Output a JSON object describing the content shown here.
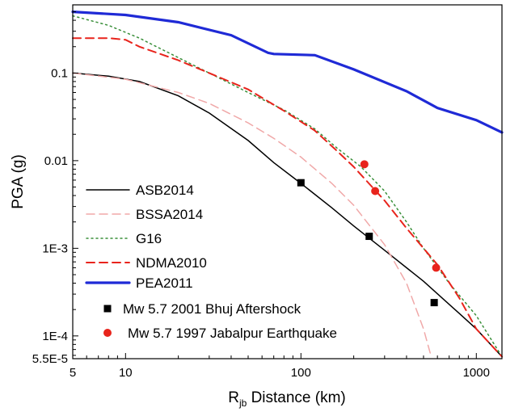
{
  "chart_data": {
    "type": "line",
    "title": "",
    "xlabel": {
      "main": "R",
      "sub": "jb",
      "rest": " Distance (km)"
    },
    "ylabel": "PGA (g)",
    "xscale": "log",
    "yscale": "log",
    "xlim": [
      5,
      1400
    ],
    "ylim": [
      5.5e-05,
      0.6
    ],
    "x_ticks": [
      {
        "value": 5,
        "label": "5"
      },
      {
        "value": 10,
        "label": "10"
      },
      {
        "value": 100,
        "label": "100"
      },
      {
        "value": 1000,
        "label": "1000"
      }
    ],
    "y_ticks": [
      {
        "value": 5.5e-05,
        "label": "5.5E-5"
      },
      {
        "value": 0.0001,
        "label": "1E-4"
      },
      {
        "value": 0.001,
        "label": "1E-3"
      },
      {
        "value": 0.01,
        "label": "0.01"
      },
      {
        "value": 0.1,
        "label": "0.1"
      }
    ],
    "grid": false,
    "legend_position": "bottom-left",
    "series": [
      {
        "name": "ASB2014",
        "kind": "line",
        "color": "#000000",
        "style": "solid",
        "x": [
          5,
          8,
          12,
          20,
          30,
          50,
          70,
          100,
          150,
          200,
          300,
          500,
          800,
          1000,
          1400
        ],
        "y": [
          0.1,
          0.092,
          0.08,
          0.055,
          0.035,
          0.017,
          0.0095,
          0.0055,
          0.0029,
          0.0018,
          0.00095,
          0.00042,
          0.00018,
          0.00012,
          5.8e-05
        ]
      },
      {
        "name": "BSSA2014",
        "kind": "line",
        "color": "#f0a8a8",
        "style": "dashed",
        "x": [
          5,
          10,
          20,
          30,
          50,
          70,
          100,
          150,
          200,
          300,
          400,
          500,
          550
        ],
        "y": [
          0.1,
          0.085,
          0.06,
          0.045,
          0.027,
          0.018,
          0.011,
          0.0055,
          0.0031,
          0.0011,
          0.0004,
          0.00012,
          6e-05
        ]
      },
      {
        "name": "G16",
        "kind": "line",
        "color": "#3a8f3a",
        "style": "dotted",
        "x": [
          5,
          8,
          12,
          20,
          30,
          50,
          80,
          120,
          160,
          220,
          300,
          400,
          500,
          700,
          1000,
          1400
        ],
        "y": [
          0.45,
          0.35,
          0.25,
          0.15,
          0.1,
          0.06,
          0.038,
          0.023,
          0.014,
          0.0085,
          0.0045,
          0.002,
          0.001,
          0.0004,
          0.00017,
          5.8e-05
        ]
      },
      {
        "name": "NDMA2010",
        "kind": "line",
        "color": "#e8241c",
        "style": "dashed",
        "x": [
          5,
          8,
          10,
          12,
          20,
          30,
          50,
          80,
          120,
          160,
          200,
          300,
          400,
          500,
          600,
          800,
          1000,
          1400
        ],
        "y": [
          0.25,
          0.25,
          0.24,
          0.2,
          0.14,
          0.1,
          0.065,
          0.037,
          0.022,
          0.013,
          0.0085,
          0.0035,
          0.0017,
          0.001,
          0.00065,
          0.00027,
          0.00012,
          5.8e-05
        ]
      },
      {
        "name": "PEA2011",
        "kind": "line",
        "color": "#1f2ad6",
        "style": "solid",
        "x": [
          5,
          10,
          20,
          40,
          65,
          70,
          120,
          200,
          400,
          600,
          1000,
          1400
        ],
        "y": [
          0.5,
          0.46,
          0.38,
          0.27,
          0.17,
          0.165,
          0.16,
          0.11,
          0.062,
          0.04,
          0.029,
          0.021
        ]
      },
      {
        "name": "Mw 5.7 2001 Bhuj Aftershock",
        "kind": "scatter",
        "marker": "square",
        "color": "#000000",
        "x": [
          100,
          245,
          575
        ],
        "y": [
          0.0056,
          0.00137,
          0.00024
        ]
      },
      {
        "name": "Mw 5.7 1997 Jabalpur Earthquake",
        "kind": "scatter",
        "marker": "circle",
        "color": "#e8241c",
        "x": [
          230,
          265,
          590
        ],
        "y": [
          0.0091,
          0.0045,
          0.0006
        ]
      }
    ]
  }
}
